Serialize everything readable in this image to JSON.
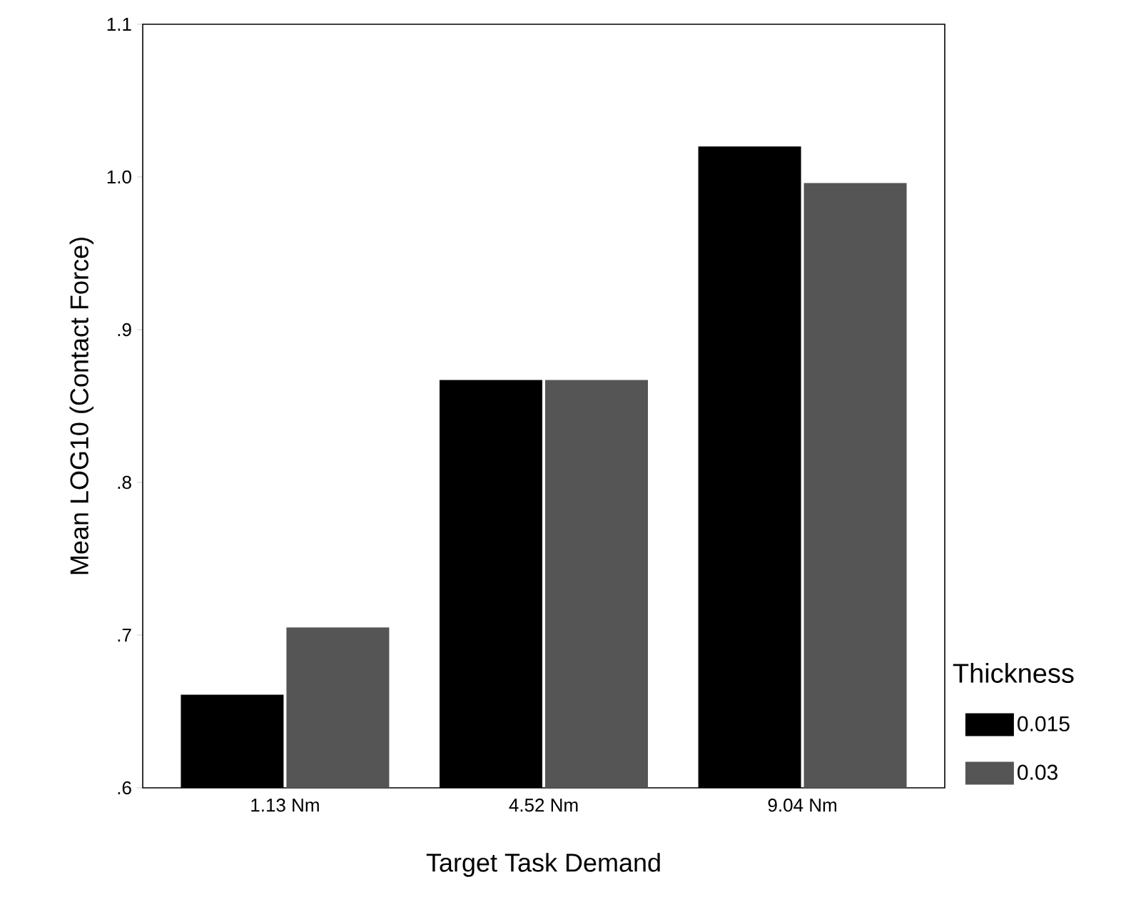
{
  "chart_data": {
    "type": "bar",
    "xlabel": "Target Task Demand",
    "ylabel": "Mean LOG10 (Contact Force)",
    "legend_title": "Thickness",
    "categories": [
      "1.13 Nm",
      "4.52 Nm",
      "9.04 Nm"
    ],
    "series": [
      {
        "name": "0.015",
        "color": "#000000",
        "values": [
          0.661,
          0.867,
          1.02
        ]
      },
      {
        "name": "0.03",
        "color": "#555555",
        "values": [
          0.705,
          0.867,
          0.996
        ]
      }
    ],
    "ylim": [
      0.6,
      1.1
    ],
    "yticks": [
      {
        "value": 0.6,
        "label": ".6"
      },
      {
        "value": 0.7,
        "label": ".7"
      },
      {
        "value": 0.8,
        "label": ".8"
      },
      {
        "value": 0.9,
        "label": ".9"
      },
      {
        "value": 1.0,
        "label": "1.0"
      },
      {
        "value": 1.1,
        "label": "1.1"
      }
    ],
    "legend": "right",
    "grid": false
  }
}
